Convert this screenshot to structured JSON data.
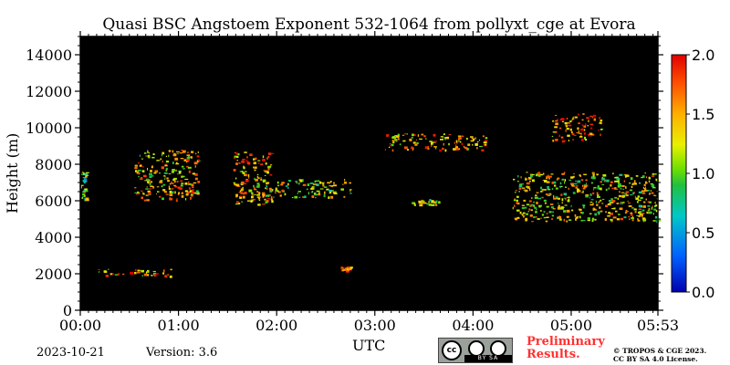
{
  "chart_data": {
    "type": "heatmap",
    "title": "Quasi BSC Angstoem Exponent 532-1064 from pollyxt_cge at Evora",
    "xlabel": "UTC",
    "ylabel": "Height (m)",
    "x_range": [
      "00:00",
      "05:53"
    ],
    "xticks": [
      "00:00",
      "01:00",
      "02:00",
      "03:00",
      "04:00",
      "05:00",
      "05:53"
    ],
    "ylim": [
      0,
      15000
    ],
    "yticks": [
      "0",
      "2000",
      "4000",
      "6000",
      "8000",
      "10000",
      "12000",
      "14000"
    ],
    "colorbar": {
      "range": [
        0.0,
        2.0
      ],
      "ticks": [
        "0.0",
        "0.5",
        "1.0",
        "1.5",
        "2.0"
      ],
      "colormap": "jet"
    },
    "background_color": "#000000",
    "features": [
      {
        "t_start": 0.0,
        "t_end": 0.06,
        "h_low": 6000,
        "h_high": 7600,
        "value": 1.0
      },
      {
        "t_start": 0.18,
        "t_end": 0.92,
        "h_low": 1900,
        "h_high": 2300,
        "value": 1.5
      },
      {
        "t_start": 0.55,
        "t_end": 1.2,
        "h_low": 6000,
        "h_high": 8800,
        "value": 1.4
      },
      {
        "t_start": 1.55,
        "t_end": 1.95,
        "h_low": 5800,
        "h_high": 8700,
        "value": 1.5
      },
      {
        "t_start": 1.85,
        "t_end": 2.75,
        "h_low": 6200,
        "h_high": 7200,
        "value": 1.2
      },
      {
        "t_start": 2.65,
        "t_end": 2.75,
        "h_low": 2200,
        "h_high": 2400,
        "value": 1.5
      },
      {
        "t_start": 3.1,
        "t_end": 4.15,
        "h_low": 8800,
        "h_high": 9700,
        "value": 1.5
      },
      {
        "t_start": 3.35,
        "t_end": 3.65,
        "h_low": 5800,
        "h_high": 6100,
        "value": 1.2
      },
      {
        "t_start": 4.4,
        "t_end": 5.88,
        "h_low": 4900,
        "h_high": 7600,
        "value": 1.3
      },
      {
        "t_start": 4.8,
        "t_end": 5.3,
        "h_low": 9300,
        "h_high": 10800,
        "value": 1.6
      }
    ]
  },
  "footer": {
    "date": "2023-10-21",
    "version": "Version: 3.6",
    "license_badge": {
      "cc": "cc",
      "bottom": "BY    SA",
      "icon": "cc-by-sa-icon"
    },
    "preliminary_line1": "Preliminary",
    "preliminary_line2": "Results.",
    "copyright_line1": "© TROPOS & CGE 2023.",
    "copyright_line2": "CC BY SA 4.0 License."
  },
  "colors": {
    "axis": "#000000",
    "preliminary": "#ff3030",
    "badge": "#9aa09a"
  }
}
